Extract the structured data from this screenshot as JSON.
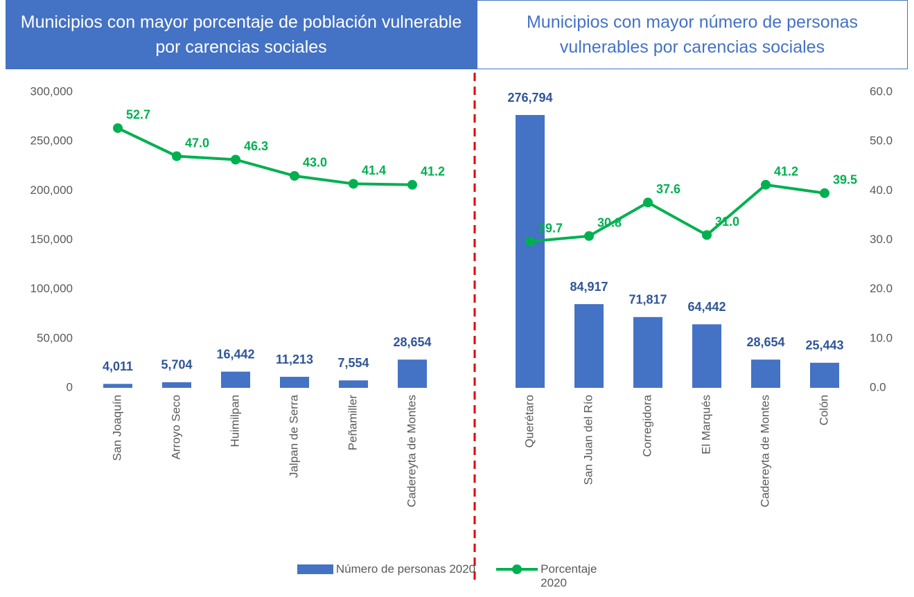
{
  "chart_data": {
    "type": "bar_line",
    "headers": [
      "Municipios con mayor porcentaje de población vulnerable por carencias sociales",
      "Municipios con mayor número de personas vulnerables por carencias sociales"
    ],
    "categories": [
      "San Joaquín",
      "Arroyo Seco",
      "Huimilpan",
      "Jalpan de Serra",
      "Peñamiller",
      "Cadereyta de Montes",
      null,
      "Querétaro",
      "San Juan del Río",
      "Corregidora",
      "El Marqués",
      "Cadereyta de Montes",
      "Colón"
    ],
    "series": [
      {
        "name": "Número de personas 2020",
        "type": "bar",
        "color": "#4472c4",
        "values": [
          4011,
          5704,
          16442,
          11213,
          7554,
          28654,
          null,
          276794,
          84917,
          71817,
          64442,
          28654,
          25443
        ],
        "value_labels": [
          "4,011",
          "5,704",
          "16,442",
          "11,213",
          "7,554",
          "28,654",
          null,
          "276,794",
          "84,917",
          "71,817",
          "64,442",
          "28,654",
          "25,443"
        ]
      },
      {
        "name": "Porcentaje 2020",
        "type": "line",
        "axis": "y2",
        "color": "#00b050",
        "values": [
          52.7,
          47.0,
          46.3,
          43.0,
          41.4,
          41.2,
          null,
          29.7,
          30.8,
          37.6,
          31.0,
          41.2,
          39.5
        ],
        "value_labels": [
          "52.7",
          "47.0",
          "46.3",
          "43.0",
          "41.4",
          "41.2",
          null,
          "29.7",
          "30.8",
          "37.6",
          "31.0",
          "41.2",
          "39.5"
        ]
      }
    ],
    "ylim": [
      0,
      300000
    ],
    "yticks": [
      0,
      {
        "value": 50000,
        "label": "50,000"
      },
      {
        "value": 100000,
        "label": "100,000"
      },
      {
        "value": 150000,
        "label": "150,000"
      },
      {
        "value": 200000,
        "label": "200,000"
      },
      {
        "value": 250000,
        "label": "250,000"
      },
      {
        "value": 300000,
        "label": "300,000"
      }
    ],
    "y2lim": [
      0,
      60
    ],
    "y2ticks": [
      {
        "value": 0,
        "label": "0.0"
      },
      {
        "value": 10,
        "label": "10.0"
      },
      {
        "value": 20,
        "label": "20.0"
      },
      {
        "value": 30,
        "label": "30.0"
      },
      {
        "value": 40,
        "label": "40.0"
      },
      {
        "value": 50,
        "label": "50.0"
      },
      {
        "value": 60,
        "label": "60.0"
      }
    ],
    "grid": false,
    "legend": "bottom"
  }
}
